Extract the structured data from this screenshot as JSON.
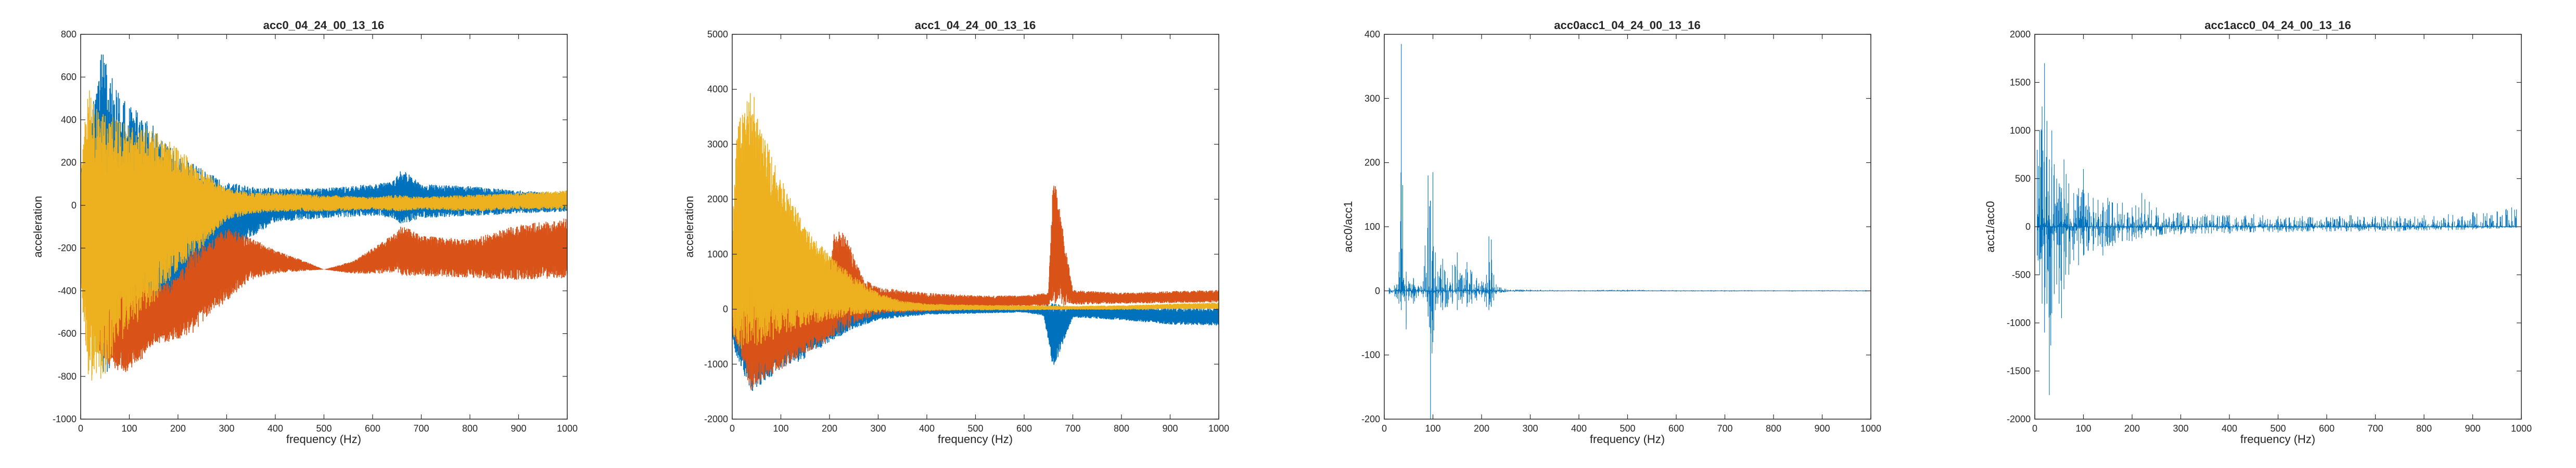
{
  "chart_data": [
    {
      "type": "line",
      "title": "acc0_04_24_00_13_16",
      "xlabel": "frequency (Hz)",
      "ylabel": "acceleration",
      "xlim": [
        0,
        1000
      ],
      "ylim": [
        -1000,
        800
      ],
      "x_ticks": [
        0,
        100,
        200,
        300,
        400,
        500,
        600,
        700,
        800,
        900,
        1000
      ],
      "y_ticks": [
        -1000,
        -800,
        -600,
        -400,
        -200,
        0,
        200,
        400,
        600,
        800
      ],
      "grid": false,
      "legend": "none",
      "series": [
        {
          "color": "#0072BD",
          "kind": "envelope",
          "x": [
            0,
            20,
            40,
            50,
            70,
            100,
            150,
            200,
            250,
            300,
            350,
            400,
            500,
            600,
            640,
            660,
            700,
            800,
            900,
            1000
          ],
          "upper": [
            160,
            420,
            740,
            700,
            560,
            470,
            380,
            240,
            170,
            110,
            90,
            80,
            80,
            100,
            110,
            170,
            100,
            90,
            70,
            55
          ],
          "lower": [
            -120,
            -380,
            -720,
            -820,
            -700,
            -640,
            -600,
            -470,
            -360,
            -260,
            -150,
            -80,
            -60,
            -50,
            -60,
            -90,
            -60,
            -50,
            -40,
            -30
          ]
        },
        {
          "color": "#D95319",
          "kind": "envelope",
          "x": [
            0,
            20,
            40,
            60,
            100,
            150,
            200,
            230,
            260,
            300,
            350,
            400,
            450,
            500,
            560,
            620,
            650,
            660,
            700,
            800,
            900,
            1000
          ],
          "upper": [
            60,
            -80,
            -130,
            -240,
            -290,
            -390,
            -330,
            -200,
            -180,
            -100,
            -150,
            -210,
            -250,
            -300,
            -260,
            -170,
            -120,
            -90,
            -140,
            -160,
            -90,
            -60
          ],
          "lower": [
            -350,
            -530,
            -700,
            -760,
            -800,
            -650,
            -630,
            -600,
            -520,
            -450,
            -350,
            -320,
            -310,
            -300,
            -320,
            -320,
            -310,
            -330,
            -330,
            -340,
            -350,
            -340
          ]
        },
        {
          "color": "#EDB120",
          "kind": "envelope",
          "x": [
            0,
            15,
            30,
            45,
            60,
            80,
            100,
            150,
            200,
            250,
            300,
            350,
            400,
            500,
            600,
            650,
            700,
            800,
            900,
            1000
          ],
          "upper": [
            200,
            560,
            460,
            440,
            420,
            400,
            380,
            350,
            270,
            170,
            80,
            60,
            60,
            50,
            40,
            50,
            40,
            50,
            60,
            70
          ],
          "lower": [
            -380,
            -800,
            -840,
            -820,
            -740,
            -640,
            -600,
            -460,
            -300,
            -200,
            -70,
            -40,
            -30,
            -30,
            -20,
            -30,
            -20,
            -30,
            -20,
            -20
          ]
        }
      ]
    },
    {
      "type": "line",
      "title": "acc1_04_24_00_13_16",
      "xlabel": "frequency (Hz)",
      "ylabel": "acceleration",
      "xlim": [
        0,
        1000
      ],
      "ylim": [
        -2000,
        5000
      ],
      "x_ticks": [
        0,
        100,
        200,
        300,
        400,
        500,
        600,
        700,
        800,
        900,
        1000
      ],
      "y_ticks": [
        -2000,
        -1000,
        0,
        1000,
        2000,
        3000,
        4000,
        5000
      ],
      "grid": false,
      "legend": "none",
      "series": [
        {
          "color": "#0072BD",
          "kind": "envelope",
          "x": [
            0,
            20,
            40,
            60,
            100,
            150,
            200,
            250,
            300,
            400,
            500,
            600,
            640,
            660,
            700,
            800,
            900,
            1000
          ],
          "upper": [
            300,
            600,
            700,
            550,
            450,
            350,
            250,
            150,
            100,
            60,
            50,
            40,
            60,
            120,
            40,
            30,
            20,
            20
          ],
          "lower": [
            -600,
            -1200,
            -1500,
            -1400,
            -1100,
            -900,
            -600,
            -350,
            -200,
            -100,
            -80,
            -60,
            -120,
            -1100,
            -150,
            -200,
            -280,
            -300
          ]
        },
        {
          "color": "#D95319",
          "kind": "envelope",
          "x": [
            0,
            20,
            40,
            60,
            100,
            150,
            200,
            210,
            230,
            250,
            270,
            300,
            400,
            500,
            600,
            650,
            660,
            700,
            800,
            900,
            1000
          ],
          "upper": [
            500,
            700,
            800,
            700,
            600,
            500,
            700,
            1500,
            1400,
            1000,
            550,
            400,
            300,
            250,
            250,
            300,
            2500,
            350,
            300,
            330,
            350
          ],
          "lower": [
            -400,
            -1000,
            -1500,
            -1300,
            -1100,
            -800,
            -600,
            -500,
            -400,
            -300,
            -200,
            -100,
            -50,
            0,
            50,
            60,
            50,
            80,
            100,
            110,
            120
          ]
        },
        {
          "color": "#EDB120",
          "kind": "envelope",
          "x": [
            0,
            10,
            30,
            40,
            60,
            100,
            150,
            200,
            250,
            300,
            350,
            400,
            500,
            600,
            700,
            800,
            900,
            1000
          ],
          "upper": [
            1500,
            3300,
            3900,
            4050,
            3300,
            2400,
            1500,
            1000,
            600,
            300,
            150,
            100,
            80,
            70,
            60,
            70,
            100,
            120
          ],
          "lower": [
            -500,
            -700,
            -750,
            -700,
            -650,
            -500,
            -300,
            -200,
            -100,
            -60,
            -40,
            -30,
            -20,
            -20,
            -10,
            -10,
            0,
            0
          ]
        }
      ]
    },
    {
      "type": "line",
      "title": "acc0acc1_04_24_00_13_16",
      "xlabel": "frequency (Hz)",
      "ylabel": "acc0/acc1",
      "xlim": [
        0,
        1000
      ],
      "ylim": [
        -200,
        400
      ],
      "x_ticks": [
        0,
        100,
        200,
        300,
        400,
        500,
        600,
        700,
        800,
        900,
        1000
      ],
      "y_ticks": [
        -200,
        -100,
        0,
        100,
        200,
        300,
        400
      ],
      "grid": false,
      "legend": "none",
      "series": [
        {
          "color": "#0072BD",
          "kind": "spikes",
          "x": [
            10,
            25,
            30,
            35,
            40,
            45,
            50,
            55,
            60,
            70,
            80,
            90,
            95,
            100,
            105,
            110,
            120,
            130,
            140,
            150,
            160,
            170,
            180,
            190,
            200,
            210,
            215,
            220,
            225,
            230,
            240,
            250,
            300,
            400,
            500,
            600,
            700,
            800,
            900,
            990
          ],
          "high": [
            5,
            10,
            30,
            385,
            20,
            30,
            15,
            10,
            20,
            8,
            15,
            180,
            140,
            185,
            60,
            30,
            50,
            20,
            40,
            60,
            25,
            45,
            30,
            20,
            15,
            25,
            85,
            80,
            25,
            10,
            5,
            3,
            2,
            1,
            2,
            1,
            1,
            1,
            1,
            1
          ],
          "low": [
            -5,
            -10,
            -20,
            -30,
            -10,
            -60,
            -15,
            -10,
            -20,
            -8,
            -10,
            -40,
            -235,
            -80,
            -30,
            -20,
            -30,
            -25,
            -20,
            -30,
            -20,
            -25,
            -20,
            -15,
            -10,
            -25,
            -30,
            -25,
            -15,
            -5,
            -3,
            -2,
            -1,
            -1,
            -1,
            -1,
            -1,
            -1,
            -1,
            -1
          ]
        }
      ]
    },
    {
      "type": "line",
      "title": "acc1acc0_04_24_00_13_16",
      "xlabel": "frequency (Hz)",
      "ylabel": "acc1/acc0",
      "xlim": [
        0,
        1000
      ],
      "ylim": [
        -2000,
        2000
      ],
      "x_ticks": [
        0,
        100,
        200,
        300,
        400,
        500,
        600,
        700,
        800,
        900,
        1000
      ],
      "y_ticks": [
        -2000,
        -1500,
        -1000,
        -500,
        0,
        500,
        1000,
        1500,
        2000
      ],
      "grid": false,
      "legend": "none",
      "series": [
        {
          "color": "#0072BD",
          "kind": "spikes",
          "x": [
            5,
            10,
            15,
            20,
            25,
            30,
            35,
            40,
            45,
            50,
            55,
            60,
            70,
            80,
            90,
            100,
            110,
            120,
            130,
            140,
            150,
            160,
            180,
            200,
            220,
            250,
            300,
            350,
            400,
            450,
            500,
            550,
            600,
            650,
            700,
            750,
            800,
            850,
            900,
            950,
            980,
            990
          ],
          "high": [
            800,
            1000,
            1250,
            1700,
            1100,
            700,
            1000,
            650,
            500,
            450,
            400,
            700,
            450,
            350,
            400,
            600,
            350,
            300,
            280,
            250,
            300,
            250,
            250,
            200,
            350,
            200,
            150,
            130,
            120,
            130,
            110,
            110,
            100,
            120,
            110,
            110,
            120,
            130,
            150,
            160,
            200,
            180
          ],
          "low": [
            -300,
            -500,
            -800,
            -1100,
            -800,
            -1750,
            -900,
            -700,
            -600,
            -800,
            -950,
            -650,
            -500,
            -350,
            -400,
            -300,
            -250,
            -250,
            -200,
            -300,
            -200,
            -200,
            -150,
            -150,
            -120,
            -100,
            -80,
            -70,
            -70,
            -60,
            -60,
            -50,
            -50,
            -50,
            -50,
            -50,
            -40,
            -40,
            -30,
            -20,
            -10,
            -10
          ]
        }
      ]
    }
  ]
}
